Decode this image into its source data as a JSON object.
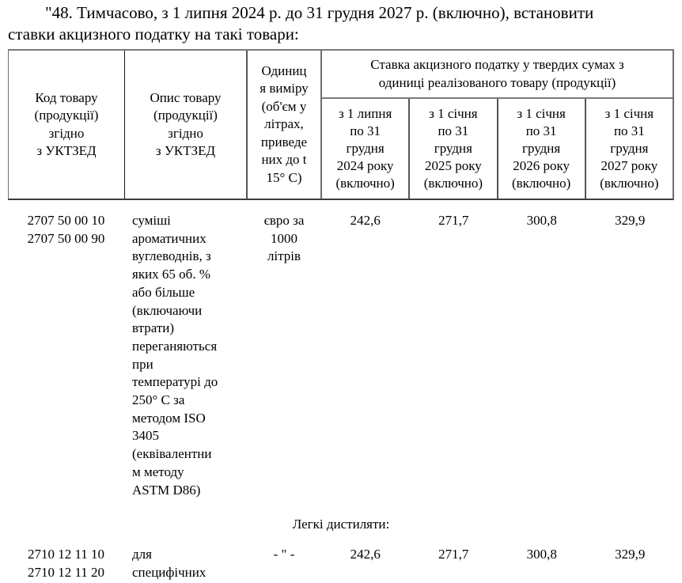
{
  "intro": {
    "text": "\"48. Тимчасово, з 1 липня 2024 р. до 31 грудня 2027 р. (включно), встановити\nставки акцизного податку на такі товари:"
  },
  "table": {
    "header": {
      "code": "Код товару\n(продукції)\nзгідно\nз УКТЗЕД",
      "description": "Опис товару\n(продукції)\nзгідно\nз УКТЗЕД",
      "unit": "Одиниц\nя виміру\n(об'єм у\nлітрах,\nприведе\nних до t\n15° C)",
      "rate_group": "Ставка акцизного податку у твердих сумах з\nодиниці реалізованого товару (продукції)",
      "periods": [
        "з 1 липня\nпо 31\nгрудня\n2024 року\n(включно)",
        "з 1 січня\nпо 31\nгрудня\n2025 року\n(включно)",
        "з 1 січня\nпо 31\nгрудня\n2026 року\n(включно)",
        "з 1 січня\nпо 31\nгрудня\n2027 року\n(включно)"
      ]
    },
    "section_label": "Легкі дистиляти:",
    "rows": [
      {
        "codes": "2707 50 00 10\n2707 50 00 90",
        "description": "суміші\nароматичних\nвуглеводнів, з\nяких 65 об. %\nабо більше\n(включаючи\nвтрати)\nпереганяються\nпри\nтемпературі до\n250° C за\nметодом ISO\n3405\n(еквівалентни\nм методу\nASTM D86)",
        "unit": "євро за\n1000\nлітрів",
        "rates": [
          "242,6",
          "271,7",
          "300,8",
          "329,9"
        ]
      },
      {
        "codes": "2710 12 11 10\n2710 12 11 20",
        "description": "для\nспецифічних",
        "unit": "- \" -",
        "rates": [
          "242,6",
          "271,7",
          "300,8",
          "329,9"
        ]
      }
    ]
  },
  "colors": {
    "text": "#000000",
    "background": "#ffffff",
    "rule_light": "#7a7a7a",
    "rule_dark": "#3d3d3d"
  }
}
